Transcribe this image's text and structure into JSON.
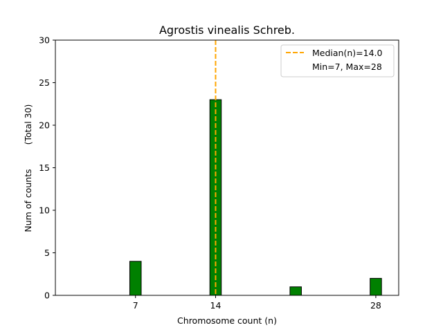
{
  "chart_data": {
    "type": "bar",
    "title": "Agrostis vinealis Schreb.",
    "xlabel": "Chromosome count (n)",
    "ylabel": "Num of counts",
    "ylabel_secondary": "(Total 30)",
    "xlim": [
      0,
      30
    ],
    "ylim": [
      0,
      30
    ],
    "x_ticks": [
      7,
      14,
      28
    ],
    "y_ticks": [
      0,
      5,
      10,
      15,
      20,
      25,
      30
    ],
    "bin_width": 1,
    "bars": [
      {
        "x": 7,
        "value": 4
      },
      {
        "x": 14,
        "value": 23
      },
      {
        "x": 21,
        "value": 1
      },
      {
        "x": 28,
        "value": 2
      }
    ],
    "bar_color": "#008000",
    "bar_edge_color": "#000000",
    "median": {
      "value": 14.0,
      "label": "Median(n)=14.0",
      "color": "#FFA500"
    },
    "legend": {
      "placement": "top-right",
      "entries": [
        "Median(n)=14.0",
        "Min=7, Max=28"
      ]
    },
    "grid": false
  }
}
